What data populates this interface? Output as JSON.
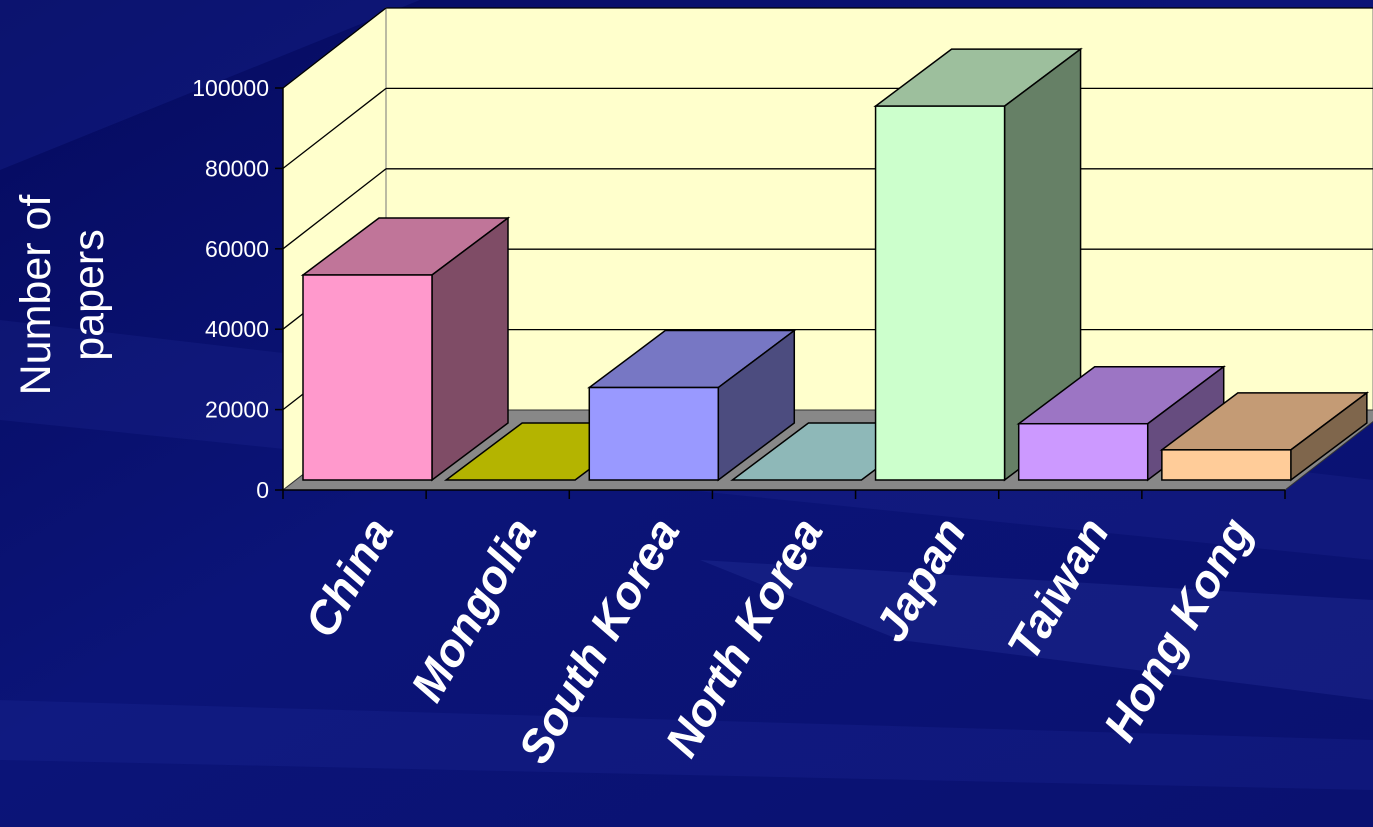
{
  "chart_data": {
    "type": "bar",
    "title": "",
    "xlabel": "",
    "ylabel_lines": [
      "Number of",
      "papers"
    ],
    "categories": [
      "China",
      "Mongolia",
      "South Korea",
      "North Korea",
      "Japan",
      "Taiwan",
      "Hong Kong"
    ],
    "values": [
      51000,
      0,
      23000,
      0,
      93000,
      14000,
      7500
    ],
    "ylim": [
      0,
      100000
    ],
    "yticks": [
      "0",
      "20000",
      "40000",
      "60000",
      "80000",
      "100000"
    ],
    "ytick_values": [
      0,
      20000,
      40000,
      60000,
      80000,
      100000
    ],
    "style": "3d-column",
    "grid": true,
    "legend": "none",
    "bar_front_colors": [
      "#ff99cc",
      "#c8c800",
      "#9999ff",
      "#99cccc",
      "#ccffcc",
      "#cc99ff",
      "#ffcc99"
    ],
    "bar_top_colors": [
      "#c07599",
      "#b4b400",
      "#7777c4",
      "#8eb8b8",
      "#9dbf9d",
      "#9c75c4",
      "#c49b75"
    ],
    "bar_side_colors": [
      "#7f4c66",
      "#7f7f00",
      "#4c4c7f",
      "#5f8484",
      "#668066",
      "#664c7f",
      "#7f664c"
    ],
    "colors": {
      "background": "#0a1170",
      "wall": "#ffffcc",
      "floor": "#888888",
      "text": "#ffffff"
    }
  }
}
